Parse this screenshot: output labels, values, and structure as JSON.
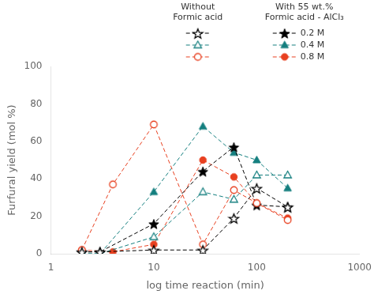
{
  "chart_data": {
    "type": "line",
    "xlabel": "log time reaction (min)",
    "ylabel": "Furfural yield (mol %)",
    "log": "x",
    "xlim": [
      1,
      1000
    ],
    "ylim": [
      0,
      100
    ],
    "xticks": [
      1,
      10,
      100,
      1000
    ],
    "yticks": [
      0,
      20,
      40,
      60,
      80,
      100
    ],
    "grid": false,
    "legend": "top",
    "annotations": [
      "Without\nFormic acid",
      "With 55 wt.%\nFormic acid - AlCl₃"
    ],
    "series": [
      {
        "color": "black",
        "marker": "star-open",
        "line_style": "dashed",
        "x": [
          2,
          3,
          10,
          30,
          60,
          100,
          200
        ],
        "values": [
          1,
          1,
          2,
          2,
          19,
          35,
          25
        ]
      },
      {
        "color": "#147f7f",
        "marker": "triangle-open",
        "line_style": "dashed",
        "x": [
          2,
          3,
          10,
          30,
          60,
          100,
          200
        ],
        "values": [
          0,
          0,
          9,
          33,
          29,
          42,
          42
        ]
      },
      {
        "color": "#e84020",
        "marker": "circle-open",
        "line_style": "dashed",
        "x": [
          2,
          4,
          10,
          30,
          60,
          100,
          200
        ],
        "values": [
          2,
          37,
          69,
          5,
          34,
          27,
          18
        ]
      },
      {
        "name": "0.2 M",
        "color": "black",
        "marker": "star",
        "line_style": "dashed",
        "x": [
          2,
          3,
          10,
          30,
          60,
          100,
          200
        ],
        "values": [
          1,
          1,
          16,
          44,
          57,
          26,
          25
        ]
      },
      {
        "name": "0.4 M",
        "color": "#147f7f",
        "marker": "triangle",
        "line_style": "dashed",
        "x": [
          2,
          3,
          10,
          30,
          60,
          100,
          200
        ],
        "values": [
          0,
          0,
          33,
          68,
          54,
          50,
          35
        ]
      },
      {
        "name": "0.8 M",
        "color": "#e84020",
        "marker": "circle",
        "line_style": "dashed",
        "x": [
          2,
          4,
          10,
          30,
          60,
          100,
          200
        ],
        "values": [
          2,
          1,
          5,
          50,
          41,
          27,
          19
        ]
      }
    ]
  }
}
